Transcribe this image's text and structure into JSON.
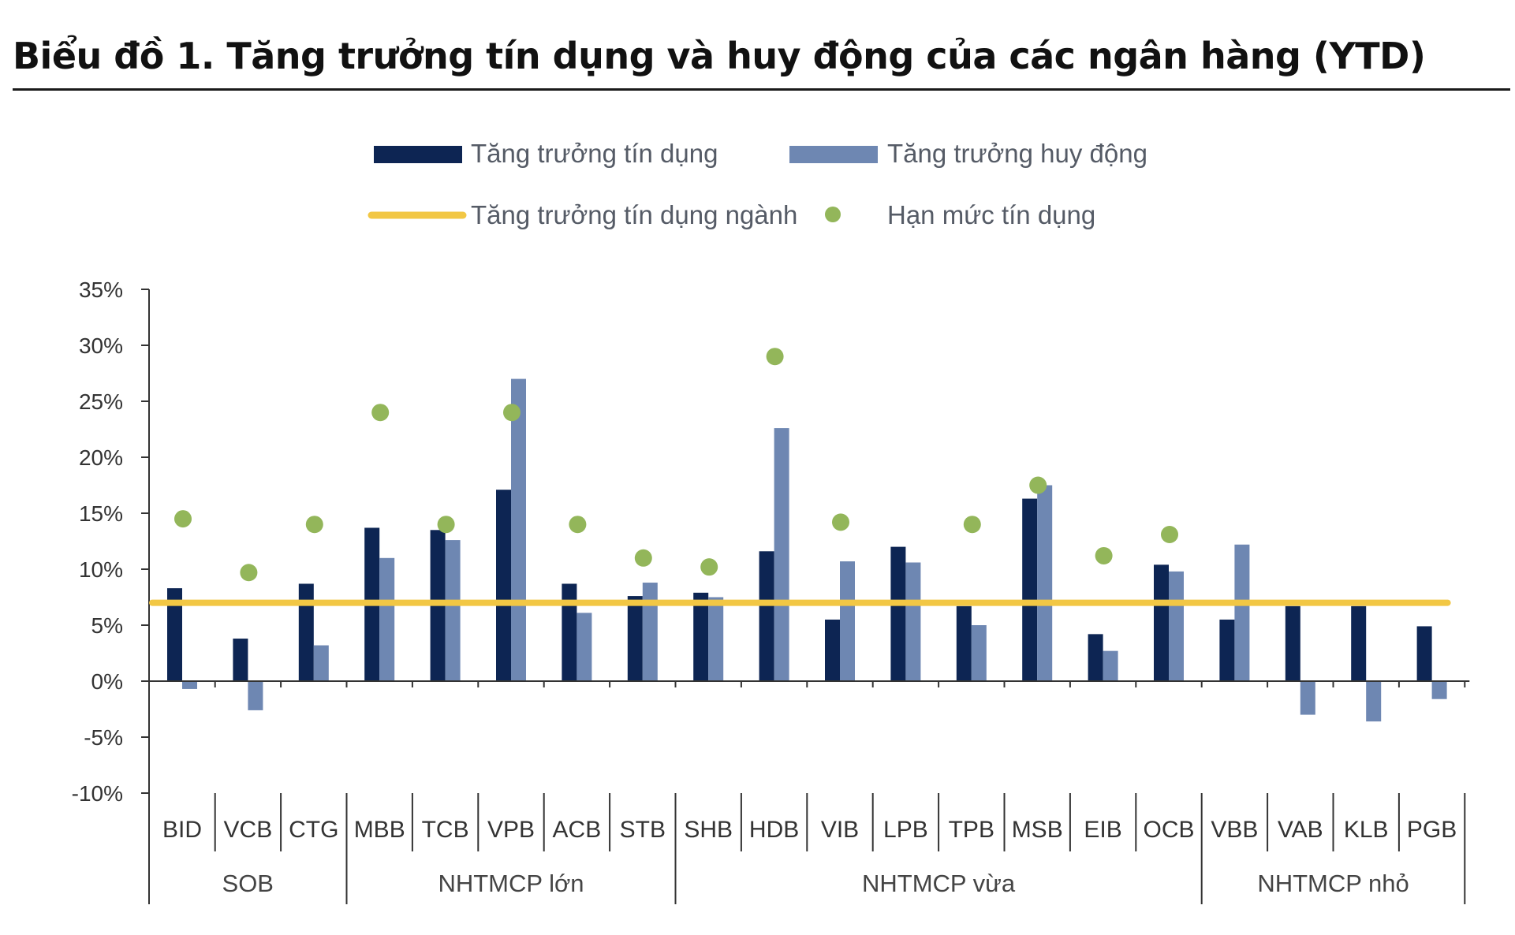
{
  "title": "Biểu đồ 1. Tăng trưởng tín dụng và huy động của các ngân hàng (YTD)",
  "colors": {
    "credit": "#0d2553",
    "deposit": "#6e87b2",
    "industry_line": "#f2c744",
    "limit_dot": "#93b65a",
    "axis": "#333333"
  },
  "chart_data": {
    "type": "bar",
    "legend": {
      "credit": "Tăng trưởng tín dụng",
      "deposit": "Tăng trưởng huy động",
      "industry": "Tăng trưởng tín dụng ngành",
      "limit": "Hạn mức tín dụng"
    },
    "legend_position": "top-center",
    "yticks": [
      "35%",
      "30%",
      "25%",
      "20%",
      "15%",
      "10%",
      "5%",
      "0%",
      "-5%",
      "-10%"
    ],
    "ylim": [
      -10,
      35
    ],
    "unit": "%",
    "categories": [
      "BID",
      "VCB",
      "CTG",
      "MBB",
      "TCB",
      "VPB",
      "ACB",
      "STB",
      "SHB",
      "HDB",
      "VIB",
      "LPB",
      "TPB",
      "MSB",
      "EIB",
      "OCB",
      "VBB",
      "VAB",
      "KLB",
      "PGB"
    ],
    "groups": [
      {
        "label": "SOB",
        "count": 3
      },
      {
        "label": "NHTMCP lớn",
        "count": 5
      },
      {
        "label": "NHTMCP vừa",
        "count": 8
      },
      {
        "label": "NHTMCP nhỏ",
        "count": 4
      }
    ],
    "series": [
      {
        "name": "Tăng trưởng tín dụng",
        "kind": "bar",
        "values": [
          8.3,
          3.8,
          8.7,
          13.7,
          13.5,
          17.1,
          8.7,
          7.6,
          7.9,
          11.6,
          5.5,
          12.0,
          6.7,
          16.3,
          4.2,
          10.4,
          5.5,
          6.7,
          6.7,
          4.9
        ]
      },
      {
        "name": "Tăng trưởng huy động",
        "kind": "bar",
        "values": [
          -0.7,
          -2.6,
          3.2,
          11.0,
          12.6,
          27.0,
          6.1,
          8.8,
          7.5,
          22.6,
          10.7,
          10.6,
          5.0,
          17.5,
          2.7,
          9.8,
          12.2,
          -3.0,
          -3.6,
          -1.6
        ]
      },
      {
        "name": "Hạn mức tín dụng",
        "kind": "dot",
        "values": [
          14.5,
          9.7,
          14.0,
          24.0,
          14.0,
          24.0,
          14.0,
          11.0,
          10.2,
          29.0,
          14.2,
          null,
          14.0,
          17.5,
          11.2,
          13.1,
          null,
          null,
          null,
          null
        ]
      }
    ],
    "reference_line": {
      "name": "Tăng trưởng tín dụng ngành",
      "value": 7.0
    }
  }
}
